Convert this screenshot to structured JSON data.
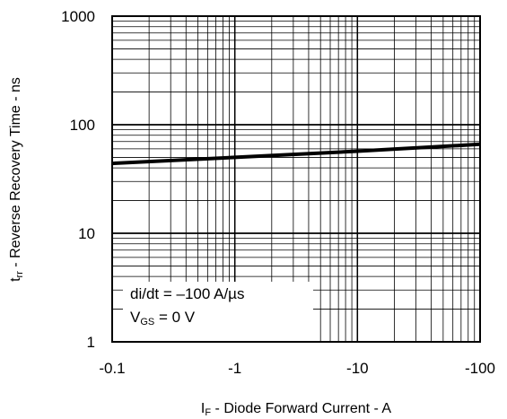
{
  "chart_data": {
    "type": "line",
    "x_scale": "log",
    "y_scale": "log",
    "x_reversed_negative": true,
    "xlim": [
      -0.1,
      -100
    ],
    "ylim": [
      1,
      1000
    ],
    "grid": true,
    "x_ticks": [
      "-0.1",
      "-1",
      "-10",
      "-100"
    ],
    "y_ticks": [
      "1000",
      "100",
      "10",
      "1"
    ],
    "xlabel": {
      "main": "I",
      "sub": "F",
      "rest": " - Diode Forward Current - A"
    },
    "ylabel": {
      "main": "t",
      "sub": "rr",
      "rest": " - Reverse Recovery Time - ns"
    },
    "series": [
      {
        "x": [
          -0.1,
          -1,
          -10,
          -100
        ],
        "y": [
          44,
          50,
          57,
          66
        ]
      }
    ],
    "annotations": [
      {
        "main": "di/dt = –100 A/µs",
        "sub": "",
        "rest": ""
      },
      {
        "main": "V",
        "sub": "GS",
        "rest": " = 0 V"
      }
    ]
  }
}
